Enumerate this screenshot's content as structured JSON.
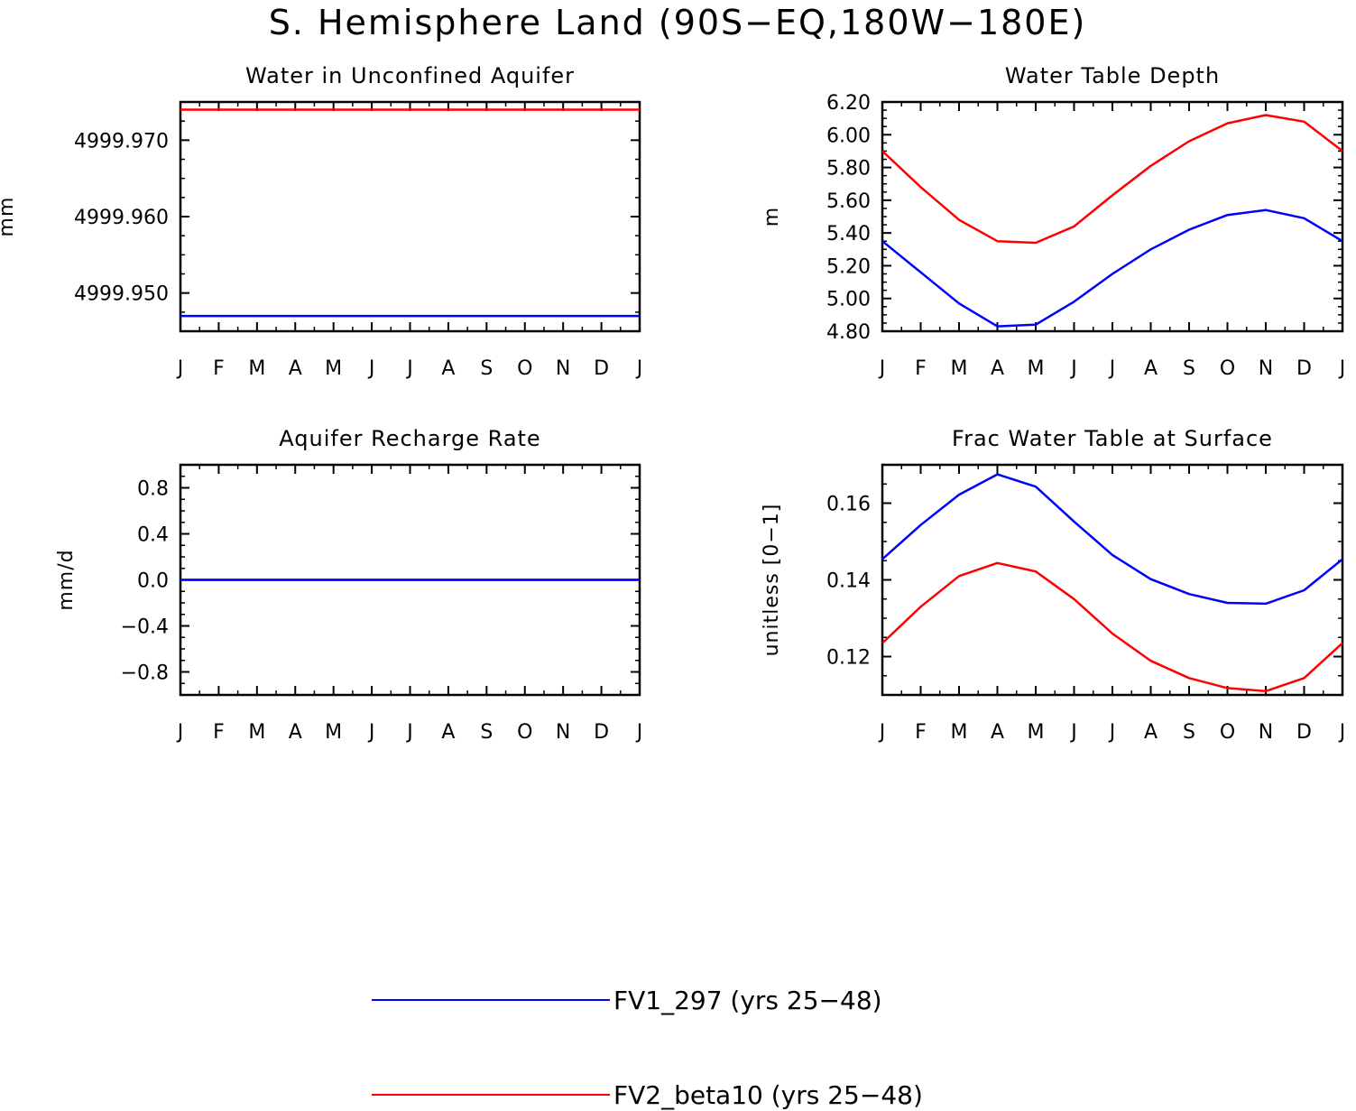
{
  "figure_title": "S. Hemisphere Land (90S−EQ,180W−180E)",
  "colors": {
    "series1": "#0000ff",
    "series2": "#ff0000"
  },
  "legend": [
    {
      "label": "FV1_297 (yrs 25−48)",
      "color": "#0000ff"
    },
    {
      "label": "FV2_beta10 (yrs 25−48)",
      "color": "#ff0000"
    }
  ],
  "chart_data": [
    {
      "type": "line",
      "title": "Water in Unconfined Aquifer",
      "ylabel": "mm",
      "xlabel": "",
      "x_tick_labels": [
        "J",
        "F",
        "M",
        "A",
        "M",
        "J",
        "J",
        "A",
        "S",
        "O",
        "N",
        "D",
        "J"
      ],
      "ylim": [
        4999.945,
        4999.975
      ],
      "y_ticks": [
        4999.95,
        4999.96,
        4999.97
      ],
      "y_tick_labels": [
        "4999.950",
        "4999.960",
        "4999.970"
      ],
      "series": [
        {
          "name": "FV1_297 (yrs 25−48)",
          "values": [
            4999.947,
            4999.947,
            4999.947,
            4999.947,
            4999.947,
            4999.947,
            4999.947,
            4999.947,
            4999.947,
            4999.947,
            4999.947,
            4999.947,
            4999.947
          ]
        },
        {
          "name": "FV2_beta10 (yrs 25−48)",
          "values": [
            4999.974,
            4999.974,
            4999.974,
            4999.974,
            4999.974,
            4999.974,
            4999.974,
            4999.974,
            4999.974,
            4999.974,
            4999.974,
            4999.974,
            4999.974
          ]
        }
      ]
    },
    {
      "type": "line",
      "title": "Water Table Depth",
      "ylabel": "m",
      "xlabel": "",
      "x_tick_labels": [
        "J",
        "F",
        "M",
        "A",
        "M",
        "J",
        "J",
        "A",
        "S",
        "O",
        "N",
        "D",
        "J"
      ],
      "ylim": [
        4.8,
        6.2
      ],
      "y_ticks": [
        4.8,
        5.0,
        5.2,
        5.4,
        5.6,
        5.8,
        6.0,
        6.2
      ],
      "y_tick_labels": [
        "4.80",
        "5.00",
        "5.20",
        "5.40",
        "5.60",
        "5.80",
        "6.00",
        "6.20"
      ],
      "series": [
        {
          "name": "FV1_297 (yrs 25−48)",
          "values": [
            5.35,
            5.16,
            4.97,
            4.83,
            4.84,
            4.98,
            5.15,
            5.3,
            5.42,
            5.51,
            5.54,
            5.49,
            5.35
          ]
        },
        {
          "name": "FV2_beta10 (yrs 25−48)",
          "values": [
            5.9,
            5.68,
            5.48,
            5.35,
            5.34,
            5.44,
            5.63,
            5.81,
            5.96,
            6.07,
            6.12,
            6.08,
            5.9
          ]
        }
      ]
    },
    {
      "type": "line",
      "title": "Aquifer Recharge Rate",
      "ylabel": "mm/d",
      "xlabel": "",
      "x_tick_labels": [
        "J",
        "F",
        "M",
        "A",
        "M",
        "J",
        "J",
        "A",
        "S",
        "O",
        "N",
        "D",
        "J"
      ],
      "ylim": [
        -1.0,
        1.0
      ],
      "y_ticks": [
        -0.8,
        -0.4,
        0.0,
        0.4,
        0.8
      ],
      "y_tick_labels": [
        "−0.8",
        "−0.4",
        "0.0",
        "0.4",
        "0.8"
      ],
      "series": [
        {
          "name": "FV1_297 (yrs 25−48)",
          "values": [
            0,
            0,
            0,
            0,
            0,
            0,
            0,
            0,
            0,
            0,
            0,
            0,
            0
          ]
        },
        {
          "name": "FV2_beta10 (yrs 25−48)",
          "values": [
            0,
            0,
            0,
            0,
            0,
            0,
            0,
            0,
            0,
            0,
            0,
            0,
            0
          ]
        }
      ]
    },
    {
      "type": "line",
      "title": "Frac Water Table at Surface",
      "ylabel": "unitless [0−1]",
      "xlabel": "",
      "x_tick_labels": [
        "J",
        "F",
        "M",
        "A",
        "M",
        "J",
        "J",
        "A",
        "S",
        "O",
        "N",
        "D",
        "J"
      ],
      "ylim": [
        0.11,
        0.17
      ],
      "y_ticks": [
        0.12,
        0.14,
        0.16
      ],
      "y_tick_labels": [
        "0.12",
        "0.14",
        "0.16"
      ],
      "series": [
        {
          "name": "FV1_297 (yrs 25−48)",
          "values": [
            0.1454,
            0.1543,
            0.1622,
            0.1675,
            0.1643,
            0.1552,
            0.1465,
            0.1402,
            0.1363,
            0.134,
            0.1338,
            0.1373,
            0.1454
          ]
        },
        {
          "name": "FV2_beta10 (yrs 25−48)",
          "values": [
            0.1235,
            0.133,
            0.141,
            0.1444,
            0.1422,
            0.135,
            0.126,
            0.1189,
            0.1144,
            0.1118,
            0.111,
            0.1144,
            0.1235
          ]
        }
      ]
    }
  ]
}
